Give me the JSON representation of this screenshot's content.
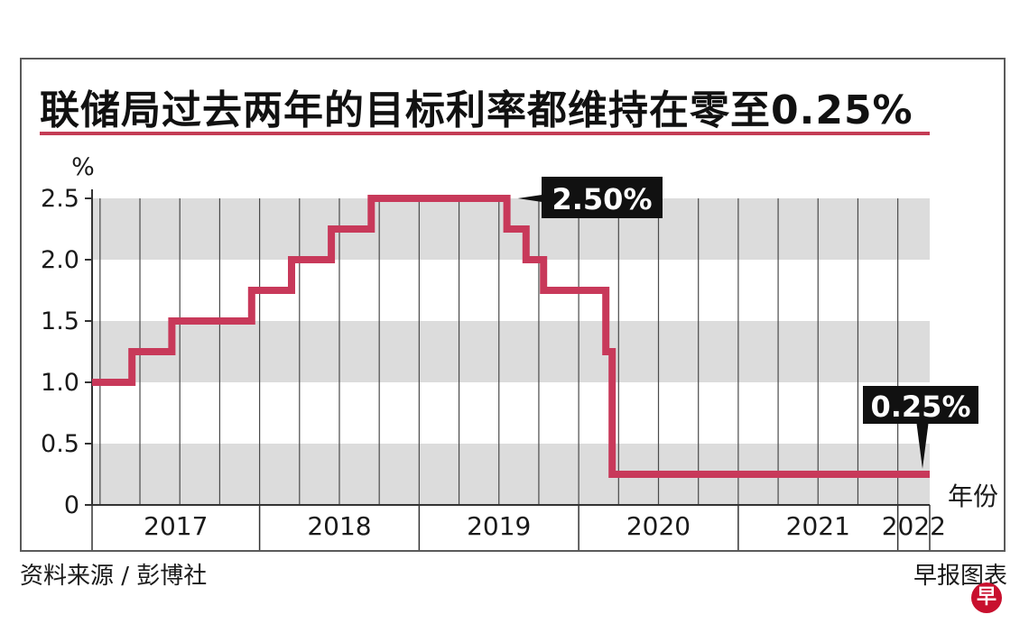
{
  "title": "联储局过去两年的目标利率都维持在零至0.25%",
  "source": "资料来源 / 彭博社",
  "credit": "早报图表",
  "logo_text": "早",
  "colors": {
    "line": "#c8395a",
    "band": "#dcdcdc",
    "title_rule": "#c43c55",
    "annotation_bg": "#111111",
    "logo": "#c8102e"
  },
  "chart_data": {
    "type": "line",
    "title": "联储局过去两年的目标利率都维持在零至0.25%",
    "ylabel": "%",
    "xlabel": "年份",
    "ylim": [
      0,
      2.5
    ],
    "xlim": [
      2016.95,
      2022.2
    ],
    "y_ticks": [
      "0",
      "0.5",
      "1.0",
      "1.5",
      "2.0",
      "2.5"
    ],
    "y_tick_values": [
      0,
      0.5,
      1.0,
      1.5,
      2.0,
      2.5
    ],
    "x_categories": [
      "2017",
      "2018",
      "2019",
      "2020",
      "2021",
      "2022"
    ],
    "grid": true,
    "series": [
      {
        "x": [
          2016.95,
          2017.2,
          2017.2,
          2017.45,
          2017.45,
          2017.95,
          2017.95,
          2018.2,
          2018.2,
          2018.45,
          2018.45,
          2018.7,
          2018.7,
          2018.95,
          2018.95,
          2019.55,
          2019.55,
          2019.67,
          2019.67,
          2019.78,
          2019.78,
          2020.17,
          2020.17,
          2020.21,
          2020.21,
          2022.2
        ],
        "y": [
          1.0,
          1.0,
          1.25,
          1.25,
          1.5,
          1.5,
          1.75,
          1.75,
          2.0,
          2.0,
          2.25,
          2.25,
          2.5,
          2.5,
          2.5,
          2.5,
          2.25,
          2.25,
          2.0,
          2.0,
          1.75,
          1.75,
          1.25,
          1.25,
          0.25,
          0.25
        ]
      }
    ],
    "annotations": [
      {
        "text": "2.50%",
        "x": 2019.55,
        "y": 2.5
      },
      {
        "text": "0.25%",
        "x": 2022.2,
        "y": 0.25
      }
    ]
  }
}
